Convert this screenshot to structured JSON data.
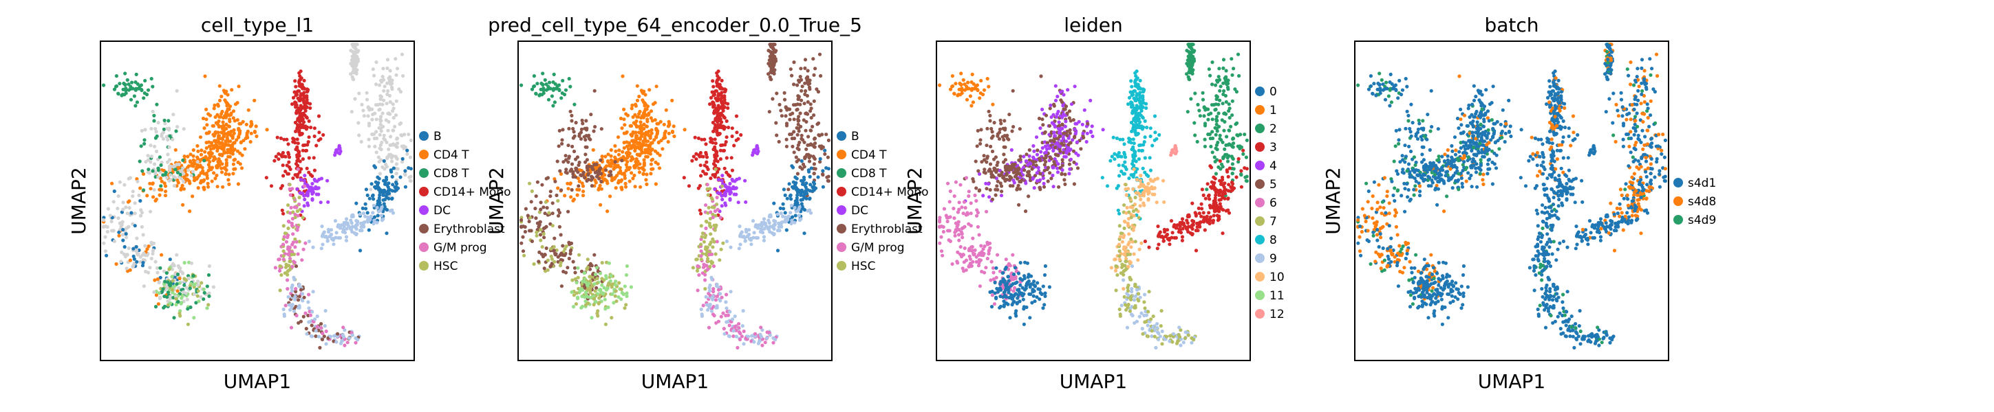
{
  "chart_data": [
    {
      "type": "scatter",
      "subtype": "umap-embedding",
      "title": "cell_type_l1",
      "xlabel": "UMAP1",
      "ylabel": "UMAP2",
      "legend_position": "right",
      "legend": [
        {
          "label": "B",
          "color": "#1f77b4"
        },
        {
          "label": "CD4 T",
          "color": "#ff7f0e"
        },
        {
          "label": "CD8 T",
          "color": "#279e68"
        },
        {
          "label": "CD14+ Mono",
          "color": "#d62728"
        },
        {
          "label": "DC",
          "color": "#aa40fc"
        },
        {
          "label": "Erythroblast",
          "color": "#8c564b"
        },
        {
          "label": "G/M prog",
          "color": "#e377c2"
        },
        {
          "label": "HSC",
          "color": "#b5bd61"
        }
      ]
    },
    {
      "type": "scatter",
      "subtype": "umap-embedding",
      "title": "pred_cell_type_64_encoder_0.0_True_5",
      "xlabel": "UMAP1",
      "ylabel": "UMAP2",
      "legend_position": "right",
      "legend": [
        {
          "label": "B",
          "color": "#1f77b4"
        },
        {
          "label": "CD4 T",
          "color": "#ff7f0e"
        },
        {
          "label": "CD8 T",
          "color": "#279e68"
        },
        {
          "label": "CD14+ Mono",
          "color": "#d62728"
        },
        {
          "label": "DC",
          "color": "#aa40fc"
        },
        {
          "label": "Erythroblast",
          "color": "#8c564b"
        },
        {
          "label": "G/M prog",
          "color": "#e377c2"
        },
        {
          "label": "HSC",
          "color": "#b5bd61"
        }
      ]
    },
    {
      "type": "scatter",
      "subtype": "umap-embedding",
      "title": "leiden",
      "xlabel": "UMAP1",
      "ylabel": "UMAP2",
      "legend_position": "right",
      "legend": [
        {
          "label": "0",
          "color": "#1f77b4"
        },
        {
          "label": "1",
          "color": "#ff7f0e"
        },
        {
          "label": "2",
          "color": "#279e68"
        },
        {
          "label": "3",
          "color": "#d62728"
        },
        {
          "label": "4",
          "color": "#aa40fc"
        },
        {
          "label": "5",
          "color": "#8c564b"
        },
        {
          "label": "6",
          "color": "#e377c2"
        },
        {
          "label": "7",
          "color": "#b5bd61"
        },
        {
          "label": "8",
          "color": "#17becf"
        },
        {
          "label": "9",
          "color": "#aec7e8"
        },
        {
          "label": "10",
          "color": "#ffbb78"
        },
        {
          "label": "11",
          "color": "#98df8a"
        },
        {
          "label": "12",
          "color": "#ff9896"
        }
      ]
    },
    {
      "type": "scatter",
      "subtype": "umap-embedding",
      "title": "batch",
      "xlabel": "UMAP1",
      "ylabel": "UMAP2",
      "legend_position": "right",
      "legend": [
        {
          "label": "s4d1",
          "color": "#1f77b4"
        },
        {
          "label": "s4d8",
          "color": "#ff7f0e"
        },
        {
          "label": "s4d9",
          "color": "#279e68"
        }
      ]
    }
  ]
}
